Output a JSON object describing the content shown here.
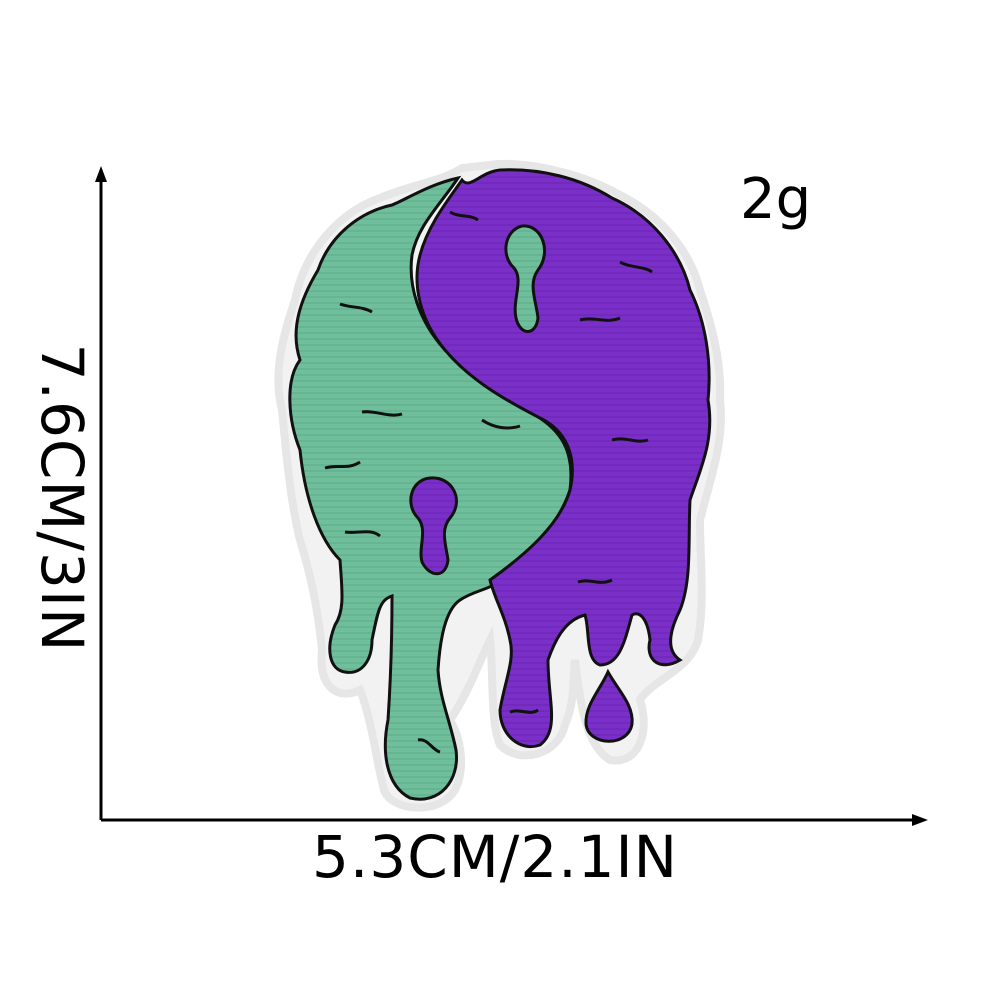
{
  "product": {
    "weight": "2g",
    "width_label": "5.3CM/2.1IN",
    "height_label": "7.6CM/3IN"
  },
  "patch": {
    "left_color": "#6fbf9c",
    "right_color": "#7b2fc9",
    "outline_color": "#111111",
    "border_color": "#f2f2f2"
  },
  "axes": {
    "color": "#000000"
  }
}
